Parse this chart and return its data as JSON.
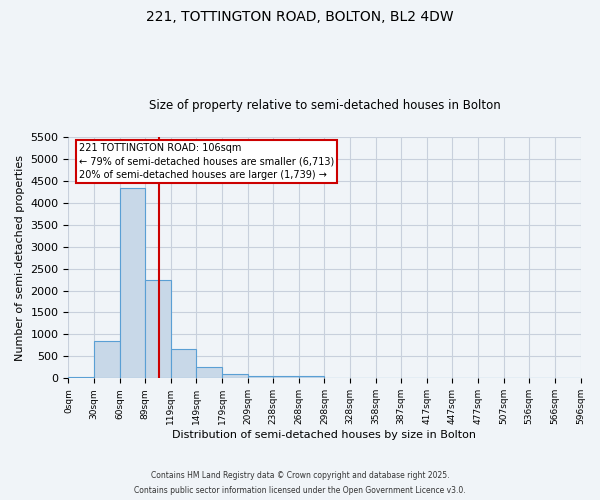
{
  "title1": "221, TOTTINGTON ROAD, BOLTON, BL2 4DW",
  "title2": "Size of property relative to semi-detached houses in Bolton",
  "xlabel": "Distribution of semi-detached houses by size in Bolton",
  "ylabel": "Number of semi-detached properties",
  "bin_labels": [
    "0sqm",
    "30sqm",
    "60sqm",
    "89sqm",
    "119sqm",
    "149sqm",
    "179sqm",
    "209sqm",
    "238sqm",
    "268sqm",
    "298sqm",
    "328sqm",
    "358sqm",
    "387sqm",
    "417sqm",
    "447sqm",
    "477sqm",
    "507sqm",
    "536sqm",
    "566sqm",
    "596sqm"
  ],
  "bin_edges": [
    0,
    30,
    60,
    89,
    119,
    149,
    179,
    209,
    238,
    268,
    298,
    328,
    358,
    387,
    417,
    447,
    477,
    507,
    536,
    566,
    596
  ],
  "bar_values": [
    30,
    840,
    4330,
    2230,
    670,
    250,
    110,
    60,
    50,
    50,
    0,
    0,
    0,
    0,
    0,
    0,
    0,
    0,
    0,
    0
  ],
  "bar_color": "#c8d8e8",
  "bar_edge_color": "#5a9fd4",
  "property_line_x": 106,
  "property_line_color": "#cc0000",
  "ylim": [
    0,
    5500
  ],
  "yticks": [
    0,
    500,
    1000,
    1500,
    2000,
    2500,
    3000,
    3500,
    4000,
    4500,
    5000,
    5500
  ],
  "annotation_title": "221 TOTTINGTON ROAD: 106sqm",
  "annotation_line1": "← 79% of semi-detached houses are smaller (6,713)",
  "annotation_line2": "20% of semi-detached houses are larger (1,739) →",
  "annotation_box_color": "#ffffff",
  "annotation_border_color": "#cc0000",
  "footer1": "Contains HM Land Registry data © Crown copyright and database right 2025.",
  "footer2": "Contains public sector information licensed under the Open Government Licence v3.0.",
  "bg_color": "#f0f4f8",
  "grid_color": "#c8d0dc"
}
